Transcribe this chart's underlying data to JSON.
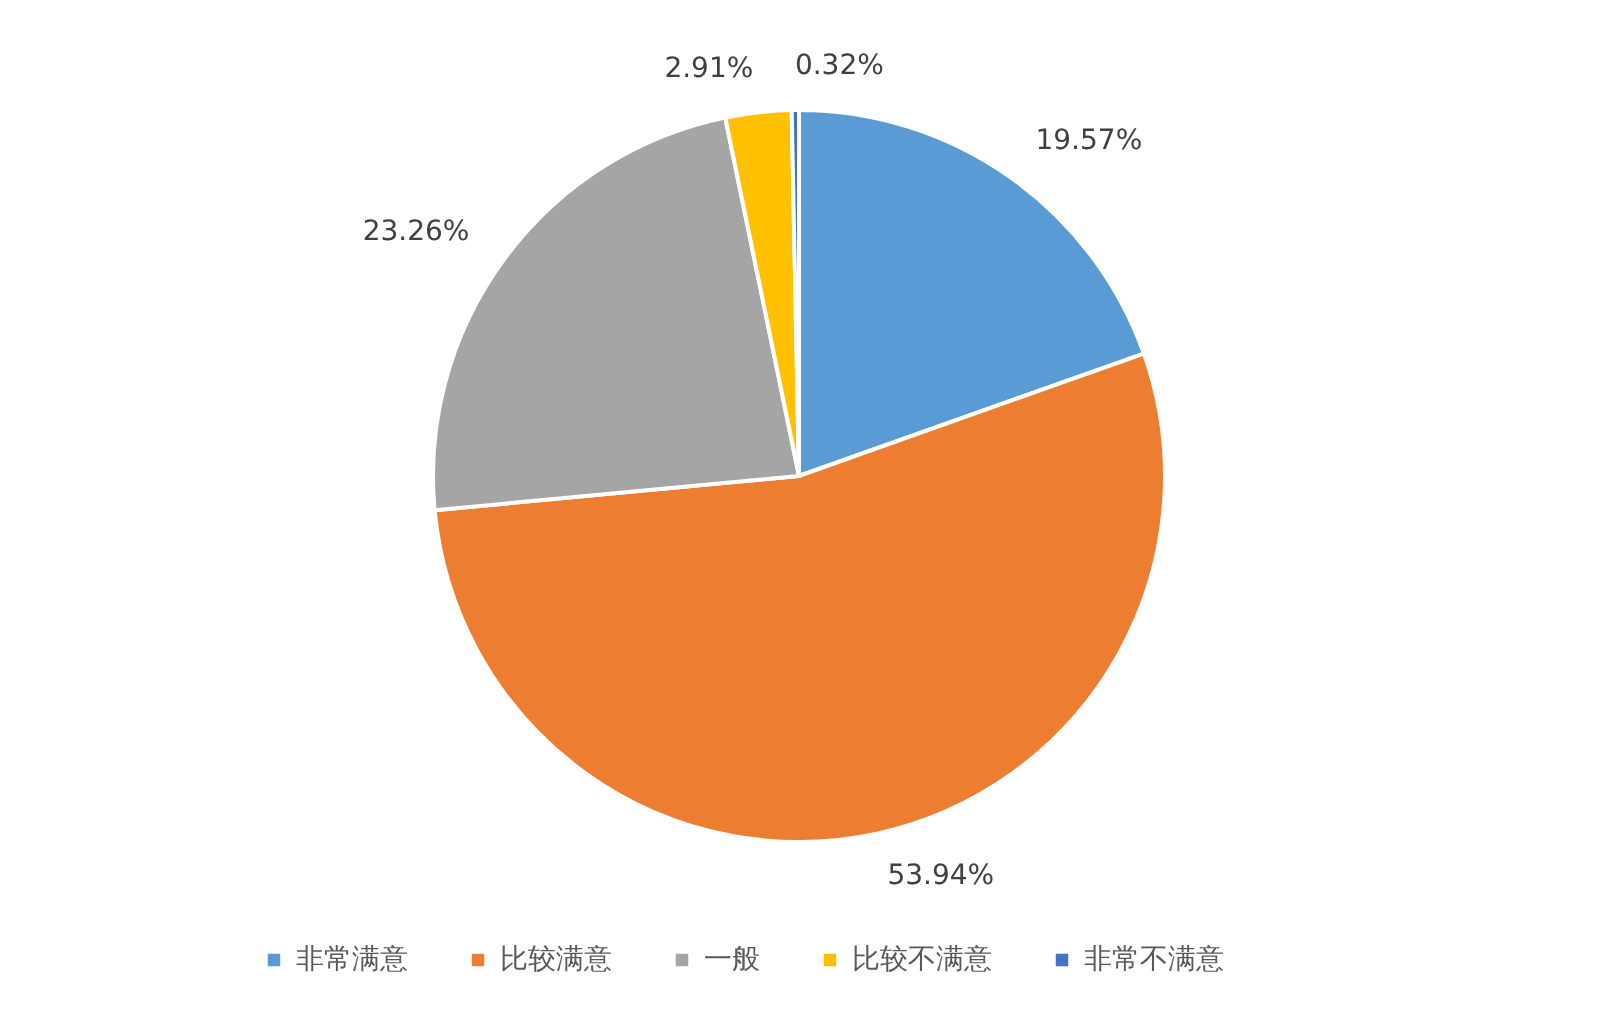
{
  "chart_data": {
    "type": "pie",
    "categories": [
      "非常满意",
      "比较满意",
      "一般",
      "比较不满意",
      "非常不满意"
    ],
    "values": [
      19.57,
      53.94,
      23.26,
      2.91,
      0.32
    ],
    "colors": [
      "#5b9bd5",
      "#ed7d31",
      "#a5a5a5",
      "#ffc000",
      "#4472c4"
    ],
    "value_labels": [
      "19.57%",
      "53.94%",
      "23.26%",
      "2.91%",
      "0.32%"
    ],
    "legend": "bottom"
  }
}
